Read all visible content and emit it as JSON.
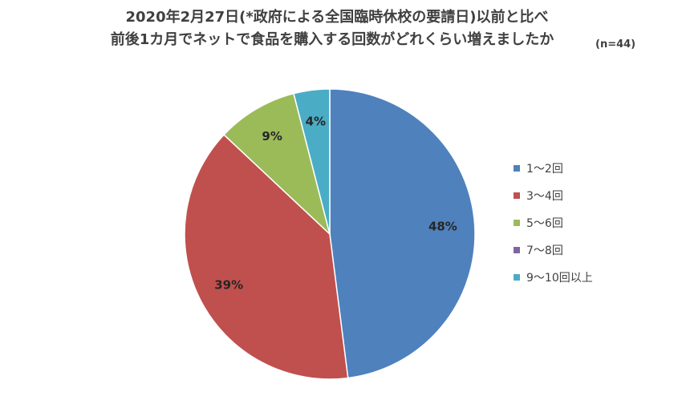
{
  "chart_data": {
    "type": "pie",
    "title_line1": "2020年2月27日(*政府による全国臨時休校の要請日)以前と比べ",
    "title_line2": "前後1カ月でネットで食品を購入する回数がどれくらい増えましたか",
    "note": "(n=44)",
    "categories": [
      "1～2回",
      "3～4回",
      "5～6回",
      "7～8回",
      "9～10回以上"
    ],
    "values": [
      48,
      39,
      9,
      0,
      4
    ],
    "labels": [
      "48%",
      "39%",
      "9%",
      "",
      "4%"
    ],
    "colors": [
      "#4f81bd",
      "#c0504d",
      "#9bbb59",
      "#8064a2",
      "#4bacc6"
    ],
    "legend_position": "right"
  }
}
